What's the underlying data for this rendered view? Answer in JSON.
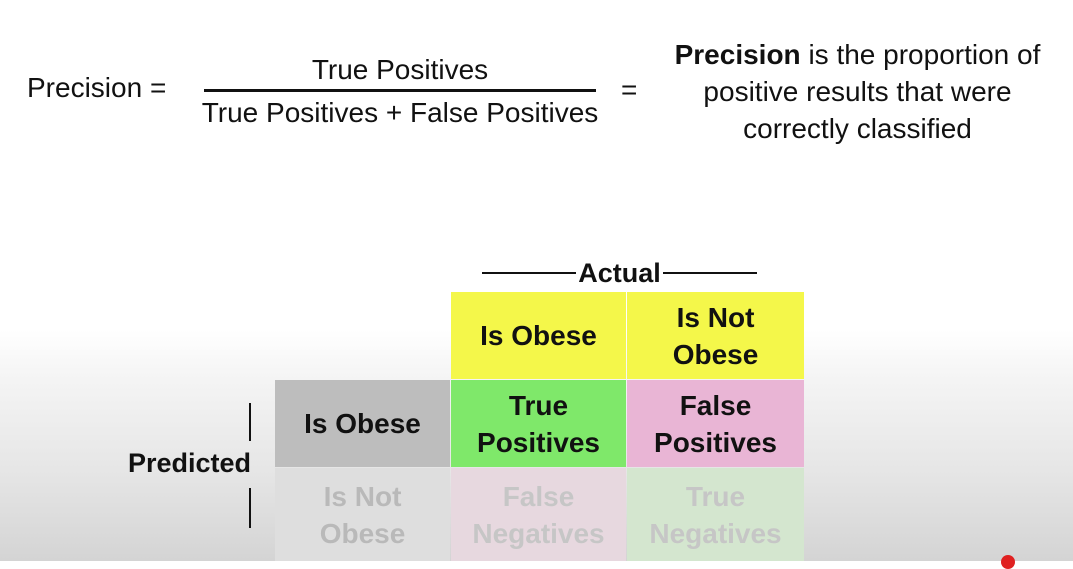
{
  "formula": {
    "lhs": "Precision =",
    "numerator": "True Positives",
    "denominator": "True Positives + False Positives",
    "equals": "=",
    "description_bold": "Precision",
    "description_rest": " is the proportion of positive results that were correctly classified"
  },
  "matrix": {
    "actual_label": "Actual",
    "predicted_label": "Predicted",
    "columns": [
      "Is Obese",
      "Is Not Obese"
    ],
    "rows": [
      {
        "header": "Is Obese",
        "cells": [
          "True Positives",
          "False Positives"
        ]
      },
      {
        "header": "Is Not Obese",
        "cells": [
          "False Negatives",
          "True Negatives"
        ]
      }
    ]
  },
  "colors": {
    "header_column": "#f4f74a",
    "true_positive": "#7fe86a",
    "false_positive": "#e9b5d5",
    "row_header": "#bdbdbd"
  }
}
